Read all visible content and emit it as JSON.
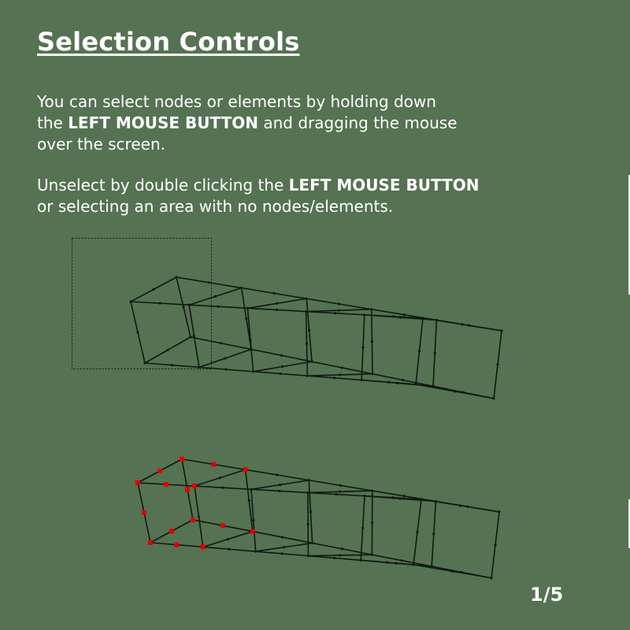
{
  "title": "Selection Controls",
  "paragraph1": {
    "line1": "You can select nodes or elements by holding down",
    "line2_pre": "the ",
    "line2_bold": "LEFT MOUSE BUTTON",
    "line2_post": " and dragging the mouse",
    "line3": "over the screen."
  },
  "paragraph2": {
    "line1_pre": "Unselect by double clicking the ",
    "line1_bold": "LEFT MOUSE BUTTON",
    "line2": "or selecting an area with no nodes/elements."
  },
  "page_counter": "1/5",
  "colors": {
    "background": "#557253",
    "mesh_line": "#0f1a0f",
    "selected_node": "#e00000",
    "text": "#ffffff"
  },
  "figures": {
    "top": "mesh-with-selection-box",
    "bottom": "mesh-with-selected-nodes"
  }
}
